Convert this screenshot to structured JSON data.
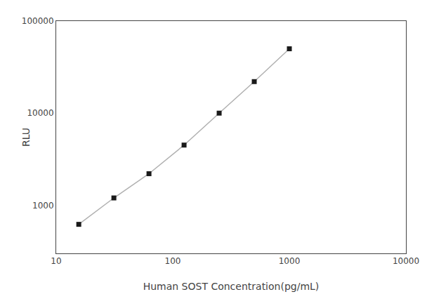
{
  "chart_data": {
    "type": "line",
    "x": [
      15.625,
      31.25,
      62.5,
      125,
      250,
      500,
      1000
    ],
    "values": [
      620,
      1200,
      2200,
      4500,
      10000,
      22000,
      50000
    ],
    "xlabel": "Human SOST Concentration(pg/mL)",
    "ylabel": "RLU",
    "log": true,
    "xlim": [
      10,
      10000
    ],
    "ylim": [
      300,
      100000
    ],
    "xticks": [
      10,
      100,
      1000,
      10000
    ],
    "yticks": [
      1000,
      10000,
      100000
    ],
    "color": "#b0b0b0",
    "marker": "square",
    "marker_color": "#1a1a1a",
    "line_style": "solid",
    "grid": false
  }
}
